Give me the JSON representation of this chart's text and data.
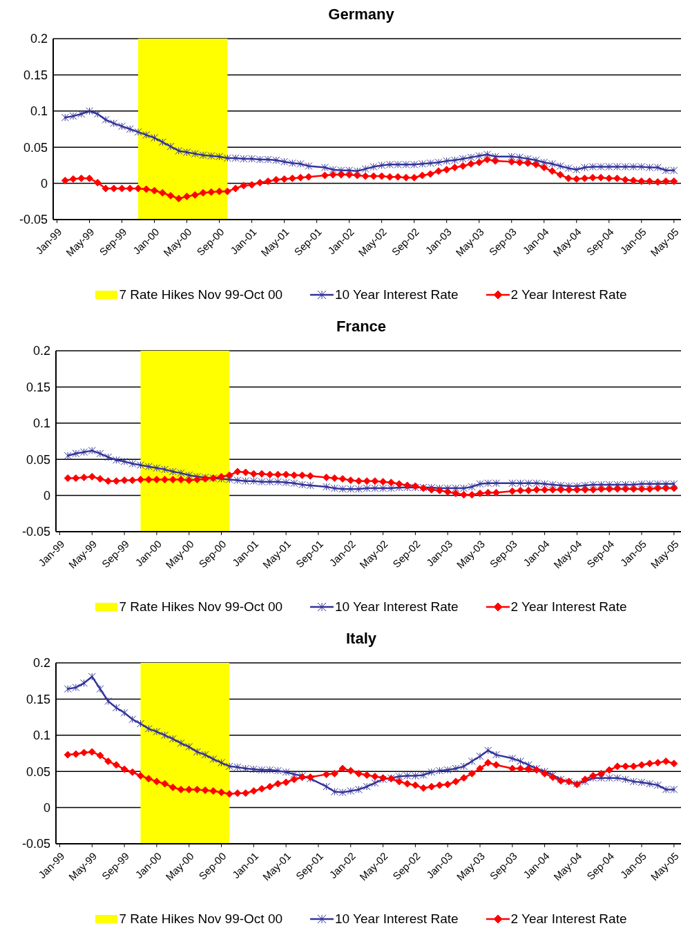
{
  "chart_data": [
    {
      "type": "line",
      "title": "Germany",
      "x": [
        "1999-02",
        "1999-03",
        "1999-04",
        "1999-05",
        "1999-06",
        "1999-07",
        "1999-08",
        "1999-09",
        "1999-10",
        "1999-11",
        "1999-12",
        "2000-01",
        "2000-02",
        "2000-03",
        "2000-04",
        "2000-05",
        "2000-06",
        "2000-07",
        "2000-08",
        "2000-09",
        "2000-10",
        "2000-11",
        "2000-12",
        "2001-01",
        "2001-02",
        "2001-03",
        "2001-04",
        "2001-05",
        "2001-06",
        "2001-07",
        "2001-08",
        "2001-09",
        "2001-10",
        "2001-11",
        "2001-12",
        "2002-01",
        "2002-02",
        "2002-03",
        "2002-04",
        "2002-05",
        "2002-06",
        "2002-07",
        "2002-08",
        "2002-09",
        "2002-10",
        "2002-11",
        "2002-12",
        "2003-01",
        "2003-02",
        "2003-03",
        "2003-04",
        "2003-05",
        "2003-06",
        "2003-07",
        "2003-08",
        "2003-09",
        "2003-10",
        "2003-11",
        "2003-12",
        "2004-01",
        "2004-02",
        "2004-03",
        "2004-04",
        "2004-05",
        "2004-06",
        "2004-07",
        "2004-08",
        "2004-09",
        "2004-10",
        "2004-11",
        "2004-12",
        "2005-01",
        "2005-02",
        "2005-03",
        "2005-04",
        "2005-05"
      ],
      "series": [
        {
          "name": "10 Year Interest Rate",
          "color": "#333399",
          "marker": "cross",
          "values": [
            0.091,
            0.093,
            0.096,
            0.1,
            0.096,
            0.088,
            0.083,
            0.079,
            0.075,
            0.071,
            0.067,
            0.063,
            0.057,
            0.051,
            0.045,
            0.043,
            0.041,
            0.039,
            0.038,
            0.037,
            0.035,
            0.035,
            0.034,
            0.034,
            0.033,
            0.033,
            0.032,
            0.03,
            0.028,
            0.027,
            0.024,
            null,
            0.022,
            0.019,
            0.018,
            0.018,
            0.017,
            0.02,
            0.023,
            0.025,
            0.026,
            0.026,
            0.026,
            0.026,
            0.027,
            0.028,
            0.029,
            0.031,
            0.032,
            0.034,
            0.036,
            0.038,
            0.04,
            0.037,
            null,
            0.037,
            0.036,
            0.034,
            0.032,
            0.029,
            0.027,
            0.024,
            0.021,
            0.019,
            0.022,
            0.023,
            0.023,
            0.023,
            0.023,
            0.023,
            0.023,
            0.023,
            0.022,
            0.022,
            0.018,
            0.018
          ]
        },
        {
          "name": "2 Year Interest Rate",
          "color": "#ff0000",
          "marker": "diamond",
          "values": [
            0.004,
            0.006,
            0.007,
            0.007,
            0.001,
            -0.007,
            -0.007,
            -0.007,
            -0.007,
            -0.007,
            -0.008,
            -0.01,
            -0.013,
            -0.017,
            -0.021,
            -0.018,
            -0.016,
            -0.013,
            -0.012,
            -0.011,
            -0.011,
            -0.007,
            -0.003,
            -0.002,
            0.001,
            0.003,
            0.005,
            0.006,
            0.007,
            0.008,
            0.009,
            null,
            0.011,
            0.012,
            0.012,
            0.012,
            0.011,
            0.01,
            0.01,
            0.01,
            0.009,
            0.009,
            0.008,
            0.008,
            0.011,
            0.013,
            0.017,
            0.019,
            0.022,
            0.024,
            0.027,
            0.029,
            0.033,
            0.031,
            null,
            0.03,
            0.029,
            0.028,
            0.026,
            0.022,
            0.017,
            0.012,
            0.007,
            0.006,
            0.007,
            0.008,
            0.008,
            0.007,
            0.007,
            0.005,
            0.004,
            0.003,
            0.003,
            0.002,
            0.003,
            0.003
          ]
        }
      ],
      "bands": [
        {
          "axis": "x",
          "from": "1999-11",
          "to": "2000-10",
          "label": "7 Rate Hikes Nov 99-Oct 00",
          "color": "#ffff00"
        }
      ],
      "xlim": [
        "1998-12-17",
        "2005-05-27"
      ],
      "xticks": [
        {
          "value": "1999-01",
          "label": "Jan-99"
        },
        {
          "value": "1999-05",
          "label": "May-99"
        },
        {
          "value": "1999-09",
          "label": "Sep-99"
        },
        {
          "value": "2000-01",
          "label": "Jan-00"
        },
        {
          "value": "2000-05",
          "label": "May-00"
        },
        {
          "value": "2000-09",
          "label": "Sep-00"
        },
        {
          "value": "2001-01",
          "label": "Jan-01"
        },
        {
          "value": "2001-05",
          "label": "May-01"
        },
        {
          "value": "2001-09",
          "label": "Sep-01"
        },
        {
          "value": "2002-01",
          "label": "Jan-02"
        },
        {
          "value": "2002-05",
          "label": "May-02"
        },
        {
          "value": "2002-09",
          "label": "Sep-02"
        },
        {
          "value": "2003-01",
          "label": "Jan-03"
        },
        {
          "value": "2003-05",
          "label": "May-03"
        },
        {
          "value": "2003-09",
          "label": "Sep-03"
        },
        {
          "value": "2004-01",
          "label": "Jan-04"
        },
        {
          "value": "2004-05",
          "label": "May-04"
        },
        {
          "value": "2004-09",
          "label": "Sep-04"
        },
        {
          "value": "2005-01",
          "label": "Jan-05"
        },
        {
          "value": "2005-05",
          "label": "May-05"
        }
      ],
      "ylim": [
        -0.05,
        0.2
      ],
      "yticks": [
        -0.05,
        0,
        0.05,
        0.1,
        0.15,
        0.2
      ],
      "grid": "y",
      "legend": "bottom",
      "line_style": "solid"
    },
    {
      "type": "line",
      "title": "France",
      "x": [
        "1999-02",
        "1999-03",
        "1999-04",
        "1999-05",
        "1999-06",
        "1999-07",
        "1999-08",
        "1999-09",
        "1999-10",
        "1999-11",
        "1999-12",
        "2000-01",
        "2000-02",
        "2000-03",
        "2000-04",
        "2000-05",
        "2000-06",
        "2000-07",
        "2000-08",
        "2000-09",
        "2000-10",
        "2000-11",
        "2000-12",
        "2001-01",
        "2001-02",
        "2001-03",
        "2001-04",
        "2001-05",
        "2001-06",
        "2001-07",
        "2001-08",
        "2001-09",
        "2001-10",
        "2001-11",
        "2001-12",
        "2002-01",
        "2002-02",
        "2002-03",
        "2002-04",
        "2002-05",
        "2002-06",
        "2002-07",
        "2002-08",
        "2002-09",
        "2002-10",
        "2002-11",
        "2002-12",
        "2003-01",
        "2003-02",
        "2003-03",
        "2003-04",
        "2003-05",
        "2003-06",
        "2003-07",
        "2003-08",
        "2003-09",
        "2003-10",
        "2003-11",
        "2003-12",
        "2004-01",
        "2004-02",
        "2004-03",
        "2004-04",
        "2004-05",
        "2004-06",
        "2004-07",
        "2004-08",
        "2004-09",
        "2004-10",
        "2004-11",
        "2004-12",
        "2005-01",
        "2005-02",
        "2005-03",
        "2005-04",
        "2005-05"
      ],
      "series": [
        {
          "name": "10 Year Interest Rate",
          "color": "#333399",
          "marker": "cross",
          "values": [
            0.055,
            0.058,
            0.06,
            0.062,
            0.058,
            0.053,
            0.049,
            0.047,
            0.044,
            0.042,
            0.04,
            0.038,
            0.036,
            0.033,
            0.031,
            0.028,
            0.026,
            0.025,
            0.024,
            0.023,
            0.022,
            0.021,
            0.02,
            0.02,
            0.019,
            0.019,
            0.019,
            0.018,
            0.017,
            0.015,
            0.014,
            null,
            0.012,
            0.01,
            0.009,
            0.009,
            0.009,
            0.01,
            0.01,
            0.01,
            0.01,
            0.011,
            0.011,
            0.011,
            0.011,
            0.011,
            0.01,
            0.01,
            0.01,
            0.01,
            0.012,
            0.016,
            0.017,
            0.017,
            null,
            0.017,
            0.017,
            0.017,
            0.017,
            0.016,
            0.015,
            0.014,
            0.013,
            0.013,
            0.014,
            0.015,
            0.015,
            0.015,
            0.015,
            0.015,
            0.015,
            0.016,
            0.016,
            0.016,
            0.016,
            0.016
          ]
        },
        {
          "name": "2 Year Interest Rate",
          "color": "#ff0000",
          "marker": "diamond",
          "values": [
            0.024,
            0.024,
            0.025,
            0.026,
            0.023,
            0.02,
            0.02,
            0.021,
            0.021,
            0.022,
            0.022,
            0.022,
            0.022,
            0.022,
            0.022,
            0.021,
            0.022,
            0.023,
            0.024,
            0.026,
            0.028,
            0.033,
            0.032,
            0.03,
            0.03,
            0.029,
            0.029,
            0.029,
            0.028,
            0.028,
            0.027,
            null,
            0.025,
            0.024,
            0.023,
            0.021,
            0.02,
            0.02,
            0.02,
            0.019,
            0.018,
            0.016,
            0.014,
            0.013,
            0.01,
            0.008,
            0.007,
            0.005,
            0.003,
            0.001,
            0.001,
            0.003,
            0.004,
            0.004,
            null,
            0.006,
            0.007,
            0.007,
            0.008,
            0.008,
            0.008,
            0.008,
            0.008,
            0.008,
            0.008,
            0.008,
            0.009,
            0.009,
            0.009,
            0.009,
            0.009,
            0.009,
            0.009,
            0.01,
            0.01,
            0.01
          ]
        }
      ],
      "bands": [
        {
          "axis": "x",
          "from": "1999-11",
          "to": "2000-10",
          "label": "7 Rate Hikes Nov 99-Oct 00",
          "color": "#ffff00"
        }
      ],
      "xlim": [
        "1998-12-17",
        "2005-05-27"
      ],
      "xticks": [
        {
          "value": "1999-01",
          "label": "Jan-99"
        },
        {
          "value": "1999-05",
          "label": "May-99"
        },
        {
          "value": "1999-09",
          "label": "Sep-99"
        },
        {
          "value": "2000-01",
          "label": "Jan-00"
        },
        {
          "value": "2000-05",
          "label": "May-00"
        },
        {
          "value": "2000-09",
          "label": "Sep-00"
        },
        {
          "value": "2001-01",
          "label": "Jan-01"
        },
        {
          "value": "2001-05",
          "label": "May-01"
        },
        {
          "value": "2001-09",
          "label": "Sep-01"
        },
        {
          "value": "2002-01",
          "label": "Jan-02"
        },
        {
          "value": "2002-05",
          "label": "May-02"
        },
        {
          "value": "2002-09",
          "label": "Sep-02"
        },
        {
          "value": "2003-01",
          "label": "Jan-03"
        },
        {
          "value": "2003-05",
          "label": "May-03"
        },
        {
          "value": "2003-09",
          "label": "Sep-03"
        },
        {
          "value": "2004-01",
          "label": "Jan-04"
        },
        {
          "value": "2004-05",
          "label": "May-04"
        },
        {
          "value": "2004-09",
          "label": "Sep-04"
        },
        {
          "value": "2005-01",
          "label": "Jan-05"
        },
        {
          "value": "2005-05",
          "label": "May-05"
        }
      ],
      "ylim": [
        -0.05,
        0.2
      ],
      "yticks": [
        -0.05,
        0,
        0.05,
        0.1,
        0.15,
        0.2
      ],
      "grid": "y",
      "legend": "bottom",
      "line_style": "solid"
    },
    {
      "type": "line",
      "title": "Italy",
      "x": [
        "1999-02",
        "1999-03",
        "1999-04",
        "1999-05",
        "1999-06",
        "1999-07",
        "1999-08",
        "1999-09",
        "1999-10",
        "1999-11",
        "1999-12",
        "2000-01",
        "2000-02",
        "2000-03",
        "2000-04",
        "2000-05",
        "2000-06",
        "2000-07",
        "2000-08",
        "2000-09",
        "2000-10",
        "2000-11",
        "2000-12",
        "2001-01",
        "2001-02",
        "2001-03",
        "2001-04",
        "2001-05",
        "2001-06",
        "2001-07",
        "2001-08",
        "2001-09",
        "2001-10",
        "2001-11",
        "2001-12",
        "2002-01",
        "2002-02",
        "2002-03",
        "2002-04",
        "2002-05",
        "2002-06",
        "2002-07",
        "2002-08",
        "2002-09",
        "2002-10",
        "2002-11",
        "2002-12",
        "2003-01",
        "2003-02",
        "2003-03",
        "2003-04",
        "2003-05",
        "2003-06",
        "2003-07",
        "2003-08",
        "2003-09",
        "2003-10",
        "2003-11",
        "2003-12",
        "2004-01",
        "2004-02",
        "2004-03",
        "2004-04",
        "2004-05",
        "2004-06",
        "2004-07",
        "2004-08",
        "2004-09",
        "2004-10",
        "2004-11",
        "2004-12",
        "2005-01",
        "2005-02",
        "2005-03",
        "2005-04",
        "2005-05"
      ],
      "series": [
        {
          "name": "10 Year Interest Rate",
          "color": "#333399",
          "marker": "cross",
          "values": [
            0.164,
            0.166,
            0.172,
            0.181,
            0.164,
            0.147,
            0.138,
            0.131,
            0.122,
            0.116,
            0.109,
            0.105,
            0.1,
            0.095,
            0.089,
            0.084,
            0.077,
            0.073,
            0.067,
            0.062,
            0.057,
            0.056,
            0.054,
            0.053,
            0.052,
            0.052,
            0.051,
            0.049,
            0.046,
            0.044,
            0.04,
            null,
            0.029,
            0.022,
            0.021,
            0.023,
            0.025,
            0.029,
            0.034,
            0.039,
            0.041,
            0.043,
            0.044,
            0.044,
            0.045,
            0.049,
            0.051,
            0.052,
            0.054,
            0.057,
            0.064,
            0.071,
            0.079,
            0.073,
            null,
            0.068,
            0.064,
            0.059,
            0.054,
            0.05,
            0.045,
            0.039,
            0.036,
            0.033,
            0.036,
            0.041,
            0.041,
            0.041,
            0.041,
            0.039,
            0.036,
            0.035,
            0.033,
            0.031,
            0.025,
            0.025
          ]
        },
        {
          "name": "2 Year Interest Rate",
          "color": "#ff0000",
          "marker": "diamond",
          "values": [
            0.073,
            0.074,
            0.076,
            0.077,
            0.072,
            0.064,
            0.059,
            0.053,
            0.049,
            0.044,
            0.04,
            0.036,
            0.033,
            0.028,
            0.025,
            0.025,
            0.025,
            0.024,
            0.023,
            0.021,
            0.019,
            0.02,
            0.02,
            0.023,
            0.026,
            0.029,
            0.033,
            0.035,
            0.039,
            0.042,
            0.042,
            null,
            0.046,
            0.047,
            0.054,
            0.051,
            0.047,
            0.045,
            0.043,
            0.041,
            0.04,
            0.036,
            0.033,
            0.031,
            0.027,
            0.029,
            0.031,
            0.032,
            0.036,
            0.041,
            0.047,
            0.054,
            0.062,
            0.059,
            null,
            0.054,
            0.054,
            0.053,
            0.052,
            0.047,
            0.042,
            0.037,
            0.036,
            0.032,
            0.039,
            0.044,
            0.047,
            0.052,
            0.057,
            0.057,
            0.057,
            0.059,
            0.061,
            0.062,
            0.064,
            0.061
          ]
        }
      ],
      "bands": [
        {
          "axis": "x",
          "from": "1999-11",
          "to": "2000-10",
          "label": "7 Rate Hikes Nov 99-Oct 00",
          "color": "#ffff00"
        }
      ],
      "xlim": [
        "1998-12-17",
        "2005-05-27"
      ],
      "xticks": [
        {
          "value": "1999-01",
          "label": "Jan-99"
        },
        {
          "value": "1999-05",
          "label": "May-99"
        },
        {
          "value": "1999-09",
          "label": "Sep-99"
        },
        {
          "value": "2000-01",
          "label": "Jan-00"
        },
        {
          "value": "2000-05",
          "label": "May-00"
        },
        {
          "value": "2000-09",
          "label": "Sep-00"
        },
        {
          "value": "2001-01",
          "label": "Jan-01"
        },
        {
          "value": "2001-05",
          "label": "May-01"
        },
        {
          "value": "2001-09",
          "label": "Sep-01"
        },
        {
          "value": "2002-01",
          "label": "Jan-02"
        },
        {
          "value": "2002-05",
          "label": "May-02"
        },
        {
          "value": "2002-09",
          "label": "Sep-02"
        },
        {
          "value": "2003-01",
          "label": "Jan-03"
        },
        {
          "value": "2003-05",
          "label": "May-03"
        },
        {
          "value": "2003-09",
          "label": "Sep-03"
        },
        {
          "value": "2004-01",
          "label": "Jan-04"
        },
        {
          "value": "2004-05",
          "label": "May-04"
        },
        {
          "value": "2004-09",
          "label": "Sep-04"
        },
        {
          "value": "2005-01",
          "label": "Jan-05"
        },
        {
          "value": "2005-05",
          "label": "May-05"
        }
      ],
      "ylim": [
        -0.05,
        0.2
      ],
      "yticks": [
        -0.05,
        0,
        0.05,
        0.1,
        0.15,
        0.2
      ],
      "grid": "y",
      "legend": "bottom",
      "line_style": "solid"
    }
  ]
}
